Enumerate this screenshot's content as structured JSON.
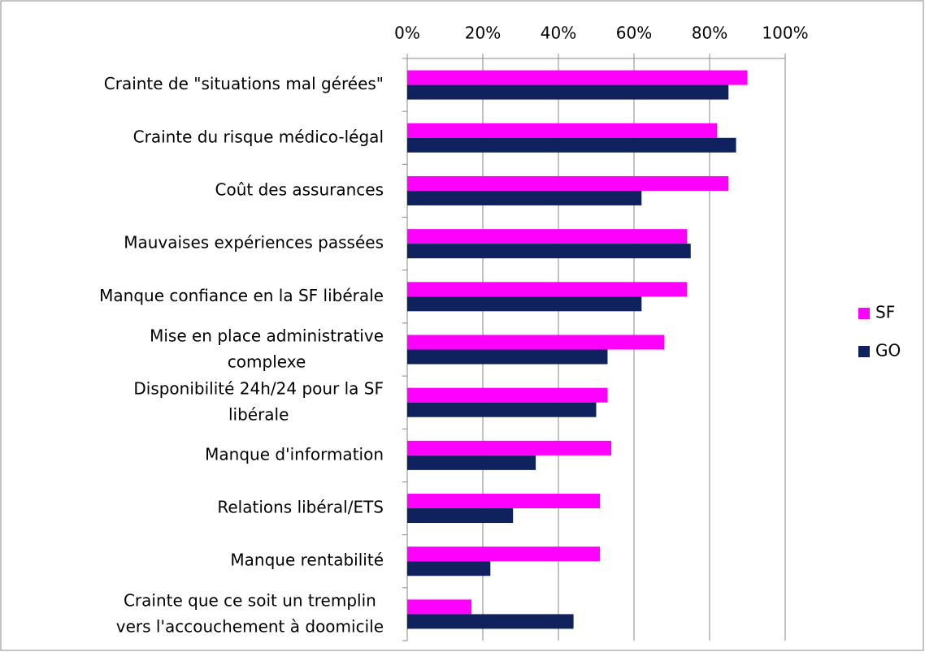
{
  "chart_data": {
    "type": "bar",
    "orientation": "horizontal",
    "categories": [
      "Crainte de \"situations mal gérées\"",
      "Crainte du risque médico-légal",
      "Coût des assurances",
      "Mauvaises expériences passées",
      "Manque confiance en la SF libérale",
      "Mise en place administrative complexe",
      "Disponibilité 24h/24 pour la SF libérale",
      "Manque d'information",
      "Relations libéral/ETS",
      "Manque rentabilité",
      "Crainte que ce soit un tremplin vers l'accouchement à doomicile"
    ],
    "series": [
      {
        "name": "SF",
        "color": "#ff00ff",
        "values": [
          90,
          82,
          85,
          74,
          74,
          68,
          53,
          54,
          51,
          51,
          17
        ]
      },
      {
        "name": "GO",
        "color": "#0f225e",
        "values": [
          85,
          87,
          62,
          75,
          62,
          53,
          50,
          34,
          28,
          22,
          44
        ]
      }
    ],
    "xlim": [
      0,
      100
    ],
    "xticks": [
      {
        "value": 0,
        "label": "0%"
      },
      {
        "value": 20,
        "label": "20%"
      },
      {
        "value": 40,
        "label": "40%"
      },
      {
        "value": 60,
        "label": "60%"
      },
      {
        "value": 80,
        "label": "80%"
      },
      {
        "value": 100,
        "label": "100%"
      }
    ],
    "grid": true,
    "legend": "right"
  }
}
